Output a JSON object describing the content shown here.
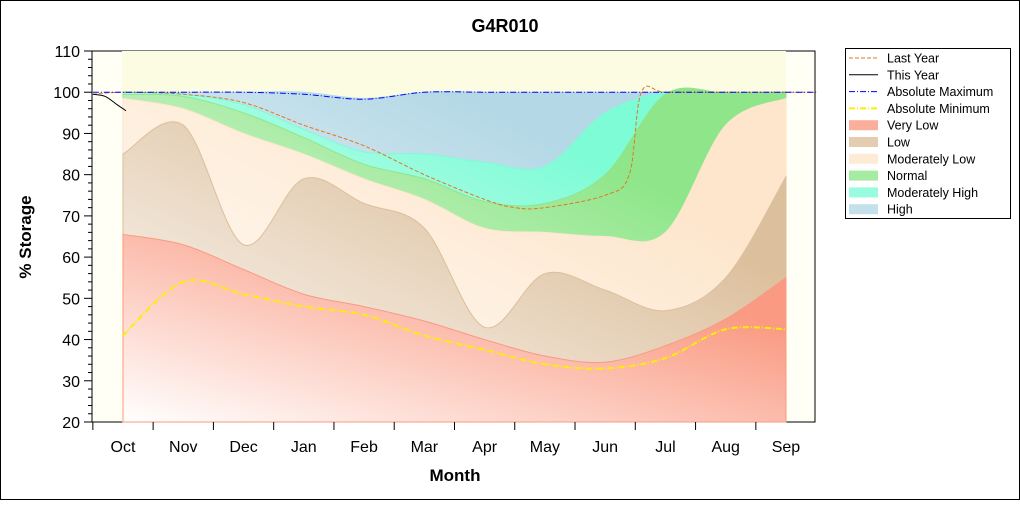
{
  "chart_data": {
    "type": "area",
    "title": "G4R010",
    "xlabel": "Month",
    "ylabel": "% Storage",
    "ylim": [
      20,
      110
    ],
    "yticks": [
      20,
      30,
      40,
      50,
      60,
      70,
      80,
      90,
      100,
      110
    ],
    "categories": [
      "Oct",
      "Nov",
      "Dec",
      "Jan",
      "Feb",
      "Mar",
      "Apr",
      "May",
      "Jun",
      "Jul",
      "Aug",
      "Sep"
    ],
    "grid": false,
    "legend_placement": "right",
    "bands": [
      {
        "name": "High",
        "color": "#b4d8e6",
        "values": [
          100,
          100,
          100,
          100,
          98.5,
          100,
          100,
          100,
          100,
          100,
          100,
          100
        ]
      },
      {
        "name": "Moderately High",
        "color": "#7dfcd6",
        "values": [
          100,
          99.5,
          97,
          91,
          85.5,
          85,
          83,
          82,
          95,
          100,
          100,
          100
        ]
      },
      {
        "name": "Normal",
        "color": "#8fe68a",
        "values": [
          99.5,
          99,
          95,
          89,
          82.5,
          79,
          73.5,
          73,
          80,
          99.5,
          99.8,
          100
        ]
      },
      {
        "name": "Moderately Low",
        "color": "#fde6cc",
        "values": [
          98.5,
          96,
          90,
          85,
          79,
          74,
          67,
          66,
          65,
          66,
          92,
          98.5
        ]
      },
      {
        "name": "Low",
        "color": "#dcbf9c",
        "values": [
          85,
          92,
          63,
          79,
          73,
          67,
          43,
          56,
          52,
          47,
          55,
          79.5
        ]
      },
      {
        "name": "Very Low",
        "color": "#fa9a82",
        "values": [
          65.5,
          63,
          57,
          51,
          48,
          44.5,
          40,
          36,
          34.5,
          38.5,
          45,
          55
        ]
      }
    ],
    "lines": [
      {
        "name": "Last Year",
        "color": "#e07820",
        "style": "dashed",
        "x": [
          -0.5,
          0,
          1,
          2,
          3,
          4,
          5,
          6,
          6.5,
          7,
          8,
          8.4,
          8.6,
          9,
          10,
          11,
          11.5
        ],
        "values": [
          99.5,
          100,
          99.5,
          97.5,
          92,
          87,
          80,
          74,
          72,
          72,
          75,
          80,
          100,
          100,
          100,
          100,
          100
        ]
      },
      {
        "name": "This Year",
        "color": "#000000",
        "style": "solid",
        "x": [
          -0.5,
          -0.3,
          -0.1,
          0.05
        ],
        "values": [
          99.5,
          99,
          97,
          95.5
        ]
      },
      {
        "name": "Absolute Maximum",
        "color": "#0000ff",
        "style": "dashdot",
        "x": [
          -0.5,
          0,
          1,
          2,
          3,
          4,
          5,
          6,
          7,
          8,
          9,
          10,
          11,
          11.5
        ],
        "values": [
          100,
          100,
          100,
          100,
          99.5,
          98.3,
          100,
          100,
          100,
          100,
          100,
          100,
          100,
          100
        ]
      },
      {
        "name": "Absolute Minimum",
        "color": "#ffee00",
        "style": "dashdot",
        "x": [
          0,
          1,
          2,
          3,
          4,
          5,
          6,
          7,
          8,
          9,
          10,
          11
        ],
        "values": [
          41,
          54,
          51,
          48,
          46,
          41,
          37.5,
          34,
          33,
          35.5,
          42.5,
          42.5
        ]
      }
    ],
    "legend": [
      "Last Year",
      "This Year",
      "Absolute Maximum",
      "Absolute Minimum",
      "Very Low",
      "Low",
      "Moderately Low",
      "Normal",
      "Moderately High",
      "High"
    ]
  }
}
